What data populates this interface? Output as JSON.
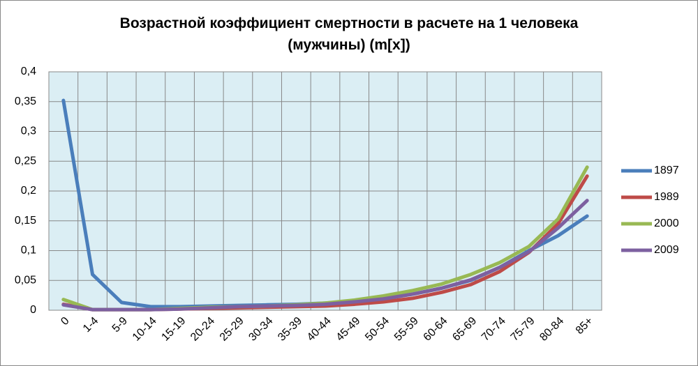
{
  "chart_data": {
    "type": "line",
    "title": "Возрастной коэффициент смертности в расчете на 1 человека (мужчины) (m[x])",
    "categories": [
      "0",
      "1-4",
      "5-9",
      "10-14",
      "15-19",
      "20-24",
      "25-29",
      "30-34",
      "35-39",
      "40-44",
      "45-49",
      "50-54",
      "55-59",
      "60-64",
      "65-69",
      "70-74",
      "75-79",
      "80-84",
      "85+"
    ],
    "series": [
      {
        "name": "1897",
        "color": "#4a7ebb",
        "values": [
          0.352,
          0.06,
          0.013,
          0.006,
          0.006,
          0.007,
          0.008,
          0.009,
          0.01,
          0.012,
          0.015,
          0.02,
          0.027,
          0.037,
          0.05,
          0.072,
          0.1,
          0.125,
          0.158
        ]
      },
      {
        "name": "1989",
        "color": "#be4b48",
        "values": [
          0.01,
          0.001,
          0.001,
          0.001,
          0.002,
          0.003,
          0.004,
          0.005,
          0.006,
          0.007,
          0.01,
          0.014,
          0.02,
          0.03,
          0.043,
          0.065,
          0.097,
          0.145,
          0.225
        ]
      },
      {
        "name": "2000",
        "color": "#98b954",
        "values": [
          0.018,
          0.001,
          0.001,
          0.001,
          0.003,
          0.005,
          0.006,
          0.007,
          0.009,
          0.012,
          0.017,
          0.024,
          0.033,
          0.044,
          0.06,
          0.08,
          0.107,
          0.153,
          0.24
        ]
      },
      {
        "name": "2009",
        "color": "#7d60a0",
        "values": [
          0.009,
          0.001,
          0.001,
          0.001,
          0.002,
          0.004,
          0.006,
          0.007,
          0.008,
          0.01,
          0.014,
          0.019,
          0.027,
          0.037,
          0.051,
          0.072,
          0.098,
          0.138,
          0.184
        ]
      }
    ],
    "ylim": [
      0,
      0.4
    ],
    "yticks": [
      0,
      {
        "value": 0.05,
        "label": "0,05"
      },
      {
        "value": 0.1,
        "label": "0,1"
      },
      {
        "value": 0.15,
        "label": "0,15"
      },
      {
        "value": 0.2,
        "label": "0,2"
      },
      {
        "value": 0.25,
        "label": "0,25"
      },
      {
        "value": 0.3,
        "label": "0,3"
      },
      {
        "value": 0.35,
        "label": "0,35"
      },
      {
        "value": 0.4,
        "label": "0,4"
      }
    ],
    "grid": true,
    "legend": "right"
  }
}
